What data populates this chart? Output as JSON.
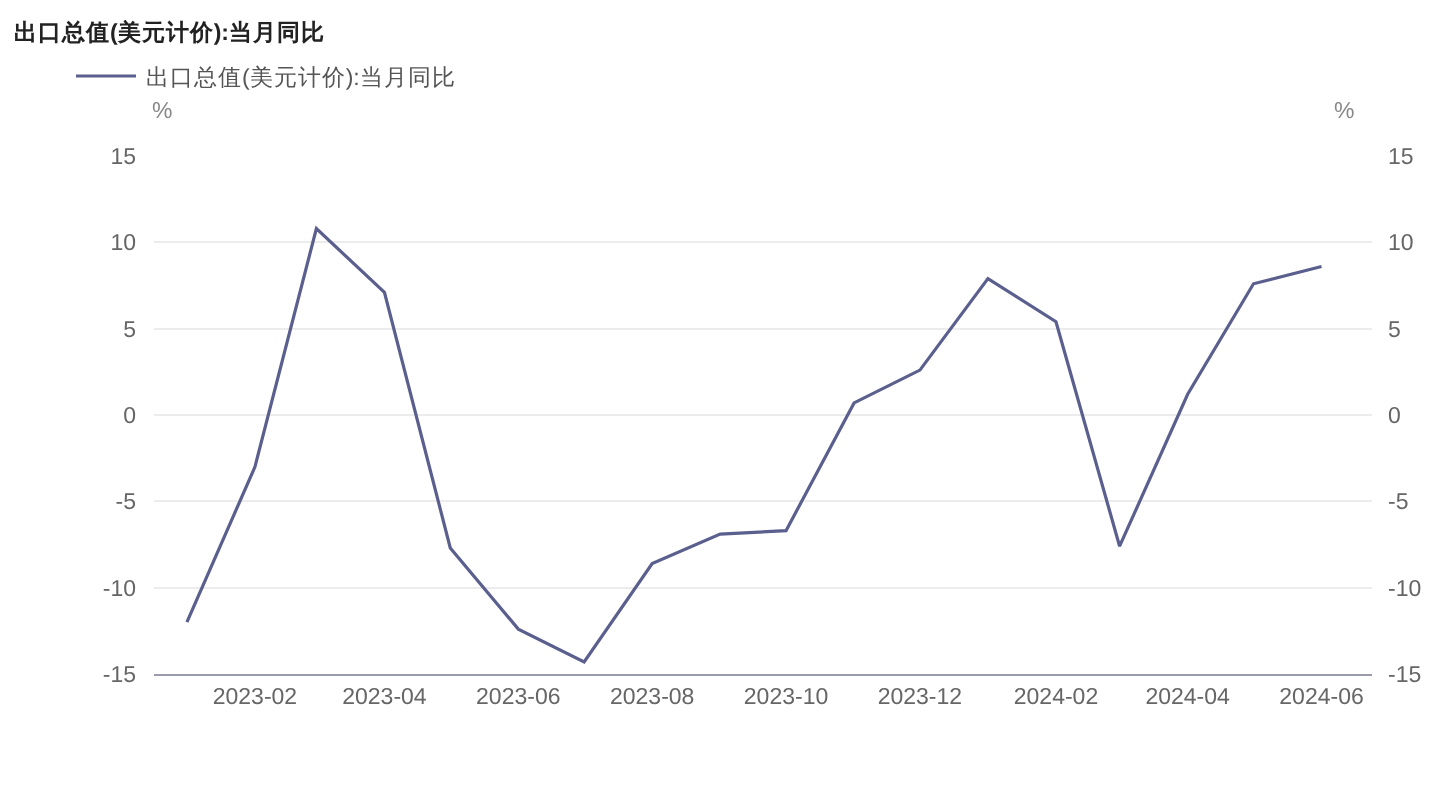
{
  "chart_data": {
    "type": "line",
    "title": "出口总值(美元计价):当月同比",
    "ylabel": "%",
    "y2label": "%",
    "x": [
      "2023-01",
      "2023-02",
      "2023-03",
      "2023-04",
      "2023-05",
      "2023-06",
      "2023-07",
      "2023-08",
      "2023-09",
      "2023-10",
      "2023-11",
      "2023-12",
      "2024-01",
      "2024-02",
      "2024-03",
      "2024-04",
      "2024-05",
      "2024-06"
    ],
    "series": [
      {
        "name": "出口总值(美元计价):当月同比",
        "color": "#5a5f8e",
        "values": [
          -12.0,
          -3.0,
          10.8,
          7.1,
          -7.7,
          -12.4,
          -14.3,
          -8.6,
          -6.9,
          -6.7,
          0.7,
          2.6,
          7.9,
          5.4,
          -7.6,
          1.2,
          7.6,
          8.6
        ]
      }
    ],
    "xlim": [
      "2022-12-17",
      "2024-06-24"
    ],
    "xticks": [
      "2023-02",
      "2023-04",
      "2023-06",
      "2023-08",
      "2023-10",
      "2023-12",
      "2024-02",
      "2024-04",
      "2024-06"
    ],
    "ylim": [
      -15,
      15
    ],
    "yticks": [
      -15,
      -10,
      -5,
      0,
      5,
      10,
      15
    ],
    "y2lim": [
      -15,
      15
    ],
    "y2ticks": [
      -15,
      -10,
      -5,
      0,
      5,
      10,
      15
    ],
    "grid": "y",
    "legend": "top left"
  }
}
